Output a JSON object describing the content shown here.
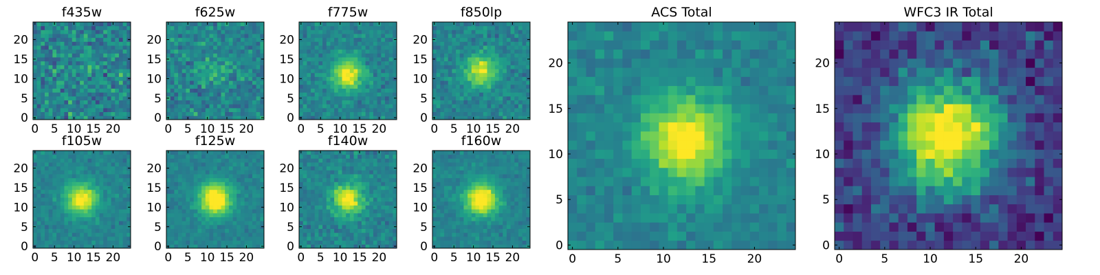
{
  "figure": {
    "background": "#ffffff"
  },
  "chart_data": [
    {
      "type": "heatmap",
      "title": "f435w",
      "xlabel": "",
      "ylabel": "",
      "grid": false,
      "colormap": "viridis",
      "xticks": [
        0,
        5,
        10,
        15,
        20
      ],
      "yticks": [
        0,
        5,
        10,
        15,
        20
      ],
      "xlim": [
        -0.5,
        24.5
      ],
      "ylim": [
        -0.5,
        24.5
      ],
      "pixels": [
        25,
        25
      ],
      "peak_x": 12,
      "peak_y": 12,
      "peak_amplitude": 0.05,
      "noise": 0.55
    },
    {
      "type": "heatmap",
      "title": "f625w",
      "xlabel": "",
      "ylabel": "",
      "grid": false,
      "colormap": "viridis",
      "xticks": [
        0,
        5,
        10,
        15,
        20
      ],
      "yticks": [
        0,
        5,
        10,
        15,
        20
      ],
      "xlim": [
        -0.5,
        24.5
      ],
      "ylim": [
        -0.5,
        24.5
      ],
      "pixels": [
        25,
        25
      ],
      "peak_x": 12,
      "peak_y": 13,
      "peak_amplitude": 0.18,
      "noise": 0.45
    },
    {
      "type": "heatmap",
      "title": "f775w",
      "xlabel": "",
      "ylabel": "",
      "grid": false,
      "colormap": "viridis",
      "xticks": [
        0,
        5,
        10,
        15,
        20
      ],
      "yticks": [
        0,
        5,
        10,
        15,
        20
      ],
      "xlim": [
        -0.5,
        24.5
      ],
      "ylim": [
        -0.5,
        24.5
      ],
      "pixels": [
        25,
        25
      ],
      "peak_x": 12,
      "peak_y": 11,
      "peak_amplitude": 0.55,
      "noise": 0.3
    },
    {
      "type": "heatmap",
      "title": "f850lp",
      "xlabel": "",
      "ylabel": "",
      "grid": false,
      "colormap": "viridis",
      "xticks": [
        0,
        5,
        10,
        15,
        20
      ],
      "yticks": [
        0,
        5,
        10,
        15,
        20
      ],
      "xlim": [
        -0.5,
        24.5
      ],
      "ylim": [
        -0.5,
        24.5
      ],
      "pixels": [
        25,
        25
      ],
      "peak_x": 12,
      "peak_y": 12,
      "peak_amplitude": 0.5,
      "noise": 0.32
    },
    {
      "type": "heatmap",
      "title": "ACS Total",
      "xlabel": "",
      "ylabel": "",
      "grid": false,
      "colormap": "viridis",
      "xticks": [
        0,
        5,
        10,
        15,
        20
      ],
      "yticks": [
        0,
        5,
        10,
        15,
        20
      ],
      "xlim": [
        -0.5,
        24.5
      ],
      "ylim": [
        -0.5,
        24.5
      ],
      "pixels": [
        25,
        25
      ],
      "peak_x": 12.5,
      "peak_y": 11.5,
      "peak_amplitude": 0.6,
      "noise": 0.25
    },
    {
      "type": "heatmap",
      "title": "WFC3 IR Total",
      "xlabel": "",
      "ylabel": "",
      "grid": false,
      "colormap": "viridis",
      "xticks": [
        0,
        5,
        10,
        15,
        20
      ],
      "yticks": [
        0,
        5,
        10,
        15,
        20
      ],
      "xlim": [
        -0.5,
        24.5
      ],
      "ylim": [
        -0.5,
        24.5
      ],
      "pixels": [
        25,
        25
      ],
      "peak_x": 12,
      "peak_y": 12,
      "peak_amplitude": 0.8,
      "noise": 0.15
    },
    {
      "type": "heatmap",
      "title": "f105w",
      "xlabel": "",
      "ylabel": "",
      "grid": false,
      "colormap": "viridis",
      "xticks": [
        0,
        5,
        10,
        15,
        20
      ],
      "yticks": [
        0,
        5,
        10,
        15,
        20
      ],
      "xlim": [
        -0.5,
        24.5
      ],
      "ylim": [
        -0.5,
        24.5
      ],
      "pixels": [
        25,
        25
      ],
      "peak_x": 12,
      "peak_y": 12,
      "peak_amplitude": 0.6,
      "noise": 0.22
    },
    {
      "type": "heatmap",
      "title": "f125w",
      "xlabel": "",
      "ylabel": "",
      "grid": false,
      "colormap": "viridis",
      "xticks": [
        0,
        5,
        10,
        15,
        20
      ],
      "yticks": [
        0,
        5,
        10,
        15,
        20
      ],
      "xlim": [
        -0.5,
        24.5
      ],
      "ylim": [
        -0.5,
        24.5
      ],
      "pixels": [
        25,
        25
      ],
      "peak_x": 12,
      "peak_y": 12,
      "peak_amplitude": 0.7,
      "noise": 0.2
    },
    {
      "type": "heatmap",
      "title": "f140w",
      "xlabel": "",
      "ylabel": "",
      "grid": false,
      "colormap": "viridis",
      "xticks": [
        0,
        5,
        10,
        15,
        20
      ],
      "yticks": [
        0,
        5,
        10,
        15,
        20
      ],
      "xlim": [
        -0.5,
        24.5
      ],
      "ylim": [
        -0.5,
        24.5
      ],
      "pixels": [
        25,
        25
      ],
      "peak_x": 12,
      "peak_y": 12,
      "peak_amplitude": 0.55,
      "noise": 0.3
    },
    {
      "type": "heatmap",
      "title": "f160w",
      "xlabel": "",
      "ylabel": "",
      "grid": false,
      "colormap": "viridis",
      "xticks": [
        0,
        5,
        10,
        15,
        20
      ],
      "yticks": [
        0,
        5,
        10,
        15,
        20
      ],
      "xlim": [
        -0.5,
        24.5
      ],
      "ylim": [
        -0.5,
        24.5
      ],
      "pixels": [
        25,
        25
      ],
      "peak_x": 12,
      "peak_y": 12,
      "peak_amplitude": 0.7,
      "noise": 0.2
    }
  ]
}
